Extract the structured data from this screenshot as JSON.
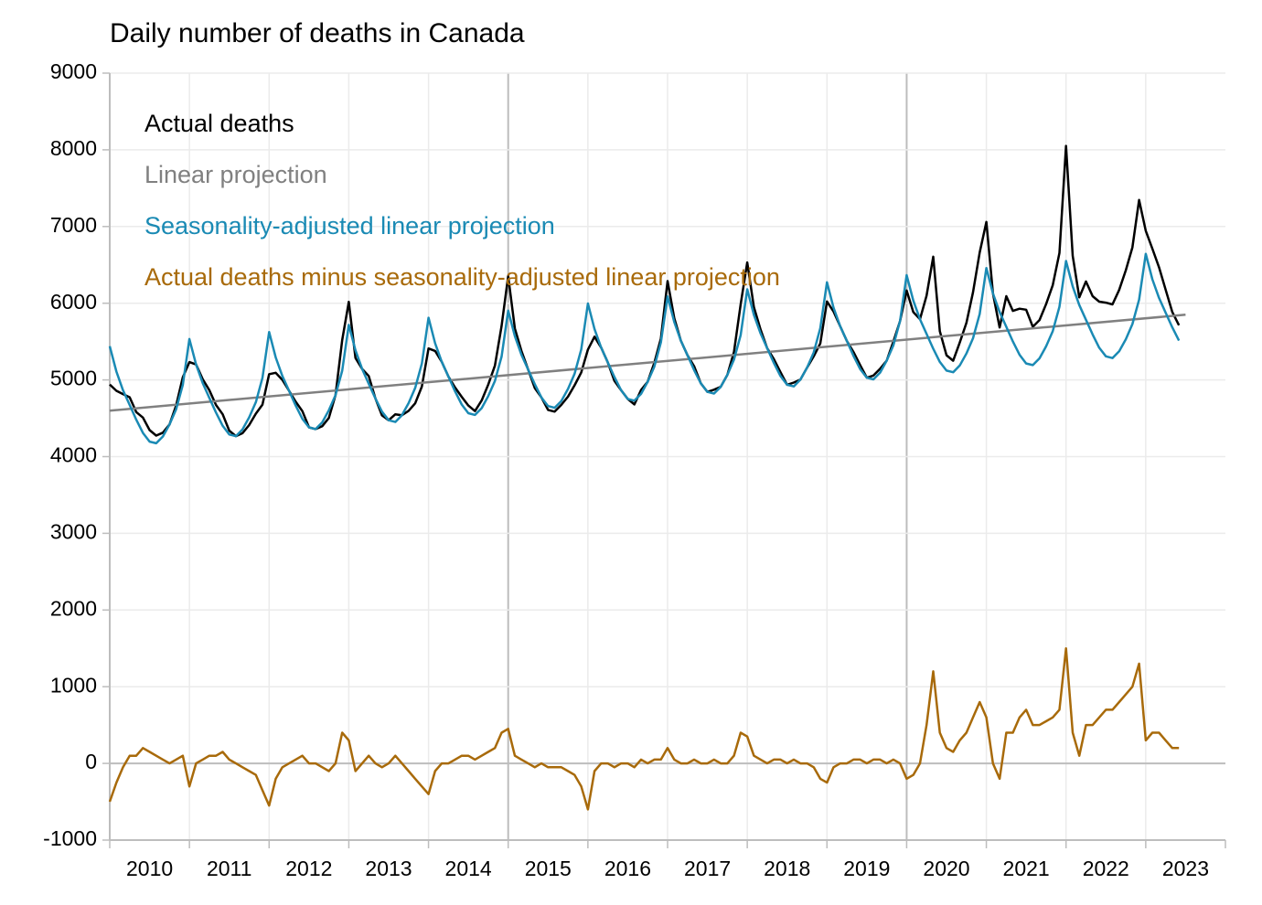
{
  "chart_data": {
    "type": "line",
    "title": "Daily number of deaths in Canada",
    "x": [
      "2010-01",
      "2010-02",
      "2010-03",
      "2010-04",
      "2010-05",
      "2010-06",
      "2010-07",
      "2010-08",
      "2010-09",
      "2010-10",
      "2010-11",
      "2010-12",
      "2011-01",
      "2011-02",
      "2011-03",
      "2011-04",
      "2011-05",
      "2011-06",
      "2011-07",
      "2011-08",
      "2011-09",
      "2011-10",
      "2011-11",
      "2011-12",
      "2012-01",
      "2012-02",
      "2012-03",
      "2012-04",
      "2012-05",
      "2012-06",
      "2012-07",
      "2012-08",
      "2012-09",
      "2012-10",
      "2012-11",
      "2012-12",
      "2013-01",
      "2013-02",
      "2013-03",
      "2013-04",
      "2013-05",
      "2013-06",
      "2013-07",
      "2013-08",
      "2013-09",
      "2013-10",
      "2013-11",
      "2013-12",
      "2014-01",
      "2014-02",
      "2014-03",
      "2014-04",
      "2014-05",
      "2014-06",
      "2014-07",
      "2014-08",
      "2014-09",
      "2014-10",
      "2014-11",
      "2014-12",
      "2015-01",
      "2015-02",
      "2015-03",
      "2015-04",
      "2015-05",
      "2015-06",
      "2015-07",
      "2015-08",
      "2015-09",
      "2015-10",
      "2015-11",
      "2015-12",
      "2016-01",
      "2016-02",
      "2016-03",
      "2016-04",
      "2016-05",
      "2016-06",
      "2016-07",
      "2016-08",
      "2016-09",
      "2016-10",
      "2016-11",
      "2016-12",
      "2017-01",
      "2017-02",
      "2017-03",
      "2017-04",
      "2017-05",
      "2017-06",
      "2017-07",
      "2017-08",
      "2017-09",
      "2017-10",
      "2017-11",
      "2017-12",
      "2018-01",
      "2018-02",
      "2018-03",
      "2018-04",
      "2018-05",
      "2018-06",
      "2018-07",
      "2018-08",
      "2018-09",
      "2018-10",
      "2018-11",
      "2018-12",
      "2019-01",
      "2019-02",
      "2019-03",
      "2019-04",
      "2019-05",
      "2019-06",
      "2019-07",
      "2019-08",
      "2019-09",
      "2019-10",
      "2019-11",
      "2019-12",
      "2020-01",
      "2020-02",
      "2020-03",
      "2020-04",
      "2020-05",
      "2020-06",
      "2020-07",
      "2020-08",
      "2020-09",
      "2020-10",
      "2020-11",
      "2020-12",
      "2021-01",
      "2021-02",
      "2021-03",
      "2021-04",
      "2021-05",
      "2021-06",
      "2021-07",
      "2021-08",
      "2021-09",
      "2021-10",
      "2021-11",
      "2021-12",
      "2022-01",
      "2022-02",
      "2022-03",
      "2022-04",
      "2022-05",
      "2022-06",
      "2022-07",
      "2022-08",
      "2022-09",
      "2022-10",
      "2022-11",
      "2022-12",
      "2023-01",
      "2023-02",
      "2023-03",
      "2023-04",
      "2023-05",
      "2023-06"
    ],
    "series": [
      {
        "name": "Actual deaths",
        "color": "#000000",
        "values": [
          4940,
          4858,
          4815,
          4773,
          4581,
          4509,
          4346,
          4274,
          4312,
          4419,
          4667,
          5035,
          5233,
          5201,
          5008,
          4866,
          4674,
          4552,
          4339,
          4267,
          4305,
          4412,
          4560,
          4678,
          5075,
          5093,
          5000,
          4858,
          4716,
          4594,
          4381,
          4359,
          4397,
          4504,
          4802,
          5520,
          6018,
          5286,
          5143,
          5051,
          4759,
          4537,
          4474,
          4552,
          4540,
          4597,
          4695,
          4913,
          5410,
          5378,
          5235,
          5043,
          4901,
          4779,
          4666,
          4594,
          4732,
          4939,
          5187,
          5705,
          6353,
          5671,
          5378,
          5136,
          4894,
          4772,
          4609,
          4587,
          4675,
          4782,
          4930,
          5098,
          5396,
          5564,
          5421,
          5229,
          4987,
          4865,
          4752,
          4680,
          4868,
          4975,
          5223,
          5541,
          6288,
          5806,
          5513,
          5321,
          5179,
          4957,
          4844,
          4872,
          4910,
          5067,
          5365,
          5983,
          6531,
          5949,
          5656,
          5414,
          5272,
          5100,
          4937,
          4965,
          5003,
          5160,
          5308,
          5476,
          6023,
          5891,
          5698,
          5506,
          5364,
          5192,
          5029,
          5057,
          5145,
          5252,
          5500,
          5768,
          6166,
          5884,
          5791,
          6099,
          6607,
          5635,
          5322,
          5250,
          5488,
          5745,
          6143,
          6661,
          7059,
          6127,
          5684,
          6092,
          5900,
          5928,
          5915,
          5693,
          5781,
          5988,
          6236,
          6654,
          8051,
          6619,
          6076,
          6284,
          6092,
          6020,
          6007,
          5985,
          6173,
          6430,
          6728,
          7346,
          6944,
          6712,
          6469,
          6177,
          5885,
          5713
        ]
      },
      {
        "name": "Linear projection",
        "color": "#808080",
        "x": [
          "2010-01",
          "2023-07"
        ],
        "values": [
          4600,
          5850
        ]
      },
      {
        "name": "Seasonality-adjusted linear projection",
        "color": "#1a8ab4",
        "values": [
          5440,
          5108,
          4865,
          4673,
          4481,
          4309,
          4196,
          4174,
          4262,
          4419,
          4617,
          4935,
          5533,
          5201,
          4958,
          4766,
          4574,
          4402,
          4289,
          4267,
          4355,
          4512,
          4710,
          5028,
          5625,
          5293,
          5050,
          4858,
          4666,
          4494,
          4381,
          4359,
          4447,
          4604,
          4802,
          5120,
          5718,
          5386,
          5143,
          4951,
          4759,
          4587,
          4474,
          4452,
          4540,
          4697,
          4895,
          5213,
          5810,
          5478,
          5235,
          5043,
          4851,
          4679,
          4566,
          4544,
          4632,
          4789,
          4987,
          5305,
          5903,
          5571,
          5328,
          5136,
          4944,
          4772,
          4659,
          4637,
          4725,
          4882,
          5080,
          5398,
          5996,
          5664,
          5421,
          5229,
          5037,
          4865,
          4752,
          4730,
          4818,
          4975,
          5173,
          5491,
          6088,
          5756,
          5513,
          5321,
          5129,
          4957,
          4844,
          4822,
          4910,
          5067,
          5265,
          5583,
          6181,
          5849,
          5606,
          5414,
          5222,
          5050,
          4937,
          4915,
          5003,
          5160,
          5358,
          5676,
          6273,
          5941,
          5698,
          5506,
          5314,
          5142,
          5029,
          5007,
          5095,
          5252,
          5450,
          5768,
          6366,
          6034,
          5791,
          5599,
          5407,
          5235,
          5122,
          5100,
          5188,
          5345,
          5543,
          5861,
          6459,
          6127,
          5884,
          5692,
          5500,
          5328,
          5215,
          5193,
          5281,
          5438,
          5636,
          5954,
          6551,
          6219,
          5976,
          5784,
          5592,
          5420,
          5307,
          5285,
          5373,
          5530,
          5728,
          6046,
          6644,
          6312,
          6069,
          5877,
          5685,
          5513
        ]
      },
      {
        "name": "Actual deaths minus seasonality-adjusted linear projection",
        "color": "#a86a0a",
        "values": [
          -500,
          -250,
          -50,
          100,
          100,
          200,
          150,
          100,
          50,
          0,
          50,
          100,
          -300,
          0,
          50,
          100,
          100,
          150,
          50,
          0,
          -50,
          -100,
          -150,
          -350,
          -550,
          -200,
          -50,
          0,
          50,
          100,
          0,
          0,
          -50,
          -100,
          0,
          400,
          300,
          -100,
          0,
          100,
          0,
          -50,
          0,
          100,
          0,
          -100,
          -200,
          -300,
          -400,
          -100,
          0,
          0,
          50,
          100,
          100,
          50,
          100,
          150,
          200,
          400,
          450,
          100,
          50,
          0,
          -50,
          0,
          -50,
          -50,
          -50,
          -100,
          -150,
          -300,
          -600,
          -100,
          0,
          0,
          -50,
          0,
          0,
          -50,
          50,
          0,
          50,
          50,
          200,
          50,
          0,
          0,
          50,
          0,
          0,
          50,
          0,
          0,
          100,
          400,
          350,
          100,
          50,
          0,
          50,
          50,
          0,
          50,
          0,
          0,
          -50,
          -200,
          -250,
          -50,
          0,
          0,
          50,
          50,
          0,
          50,
          50,
          0,
          50,
          0,
          -200,
          -150,
          0,
          500,
          1200,
          400,
          200,
          150,
          300,
          400,
          600,
          800,
          600,
          0,
          -200,
          400,
          400,
          600,
          700,
          500,
          500,
          550,
          600,
          700,
          1500,
          400,
          100,
          500,
          500,
          600,
          700,
          700,
          800,
          900,
          1000,
          1300,
          300,
          400,
          400,
          300,
          200,
          200
        ]
      }
    ],
    "xlim": [
      2010,
      2024
    ],
    "xticks": [
      2010,
      2011,
      2012,
      2013,
      2014,
      2015,
      2016,
      2017,
      2018,
      2019,
      2020,
      2021,
      2022,
      2023
    ],
    "ylim": [
      -1000,
      9000
    ],
    "yticks": [
      -1000,
      0,
      1000,
      2000,
      3000,
      4000,
      5000,
      6000,
      7000,
      8000,
      9000
    ],
    "grid": true,
    "legend": "top-left"
  }
}
